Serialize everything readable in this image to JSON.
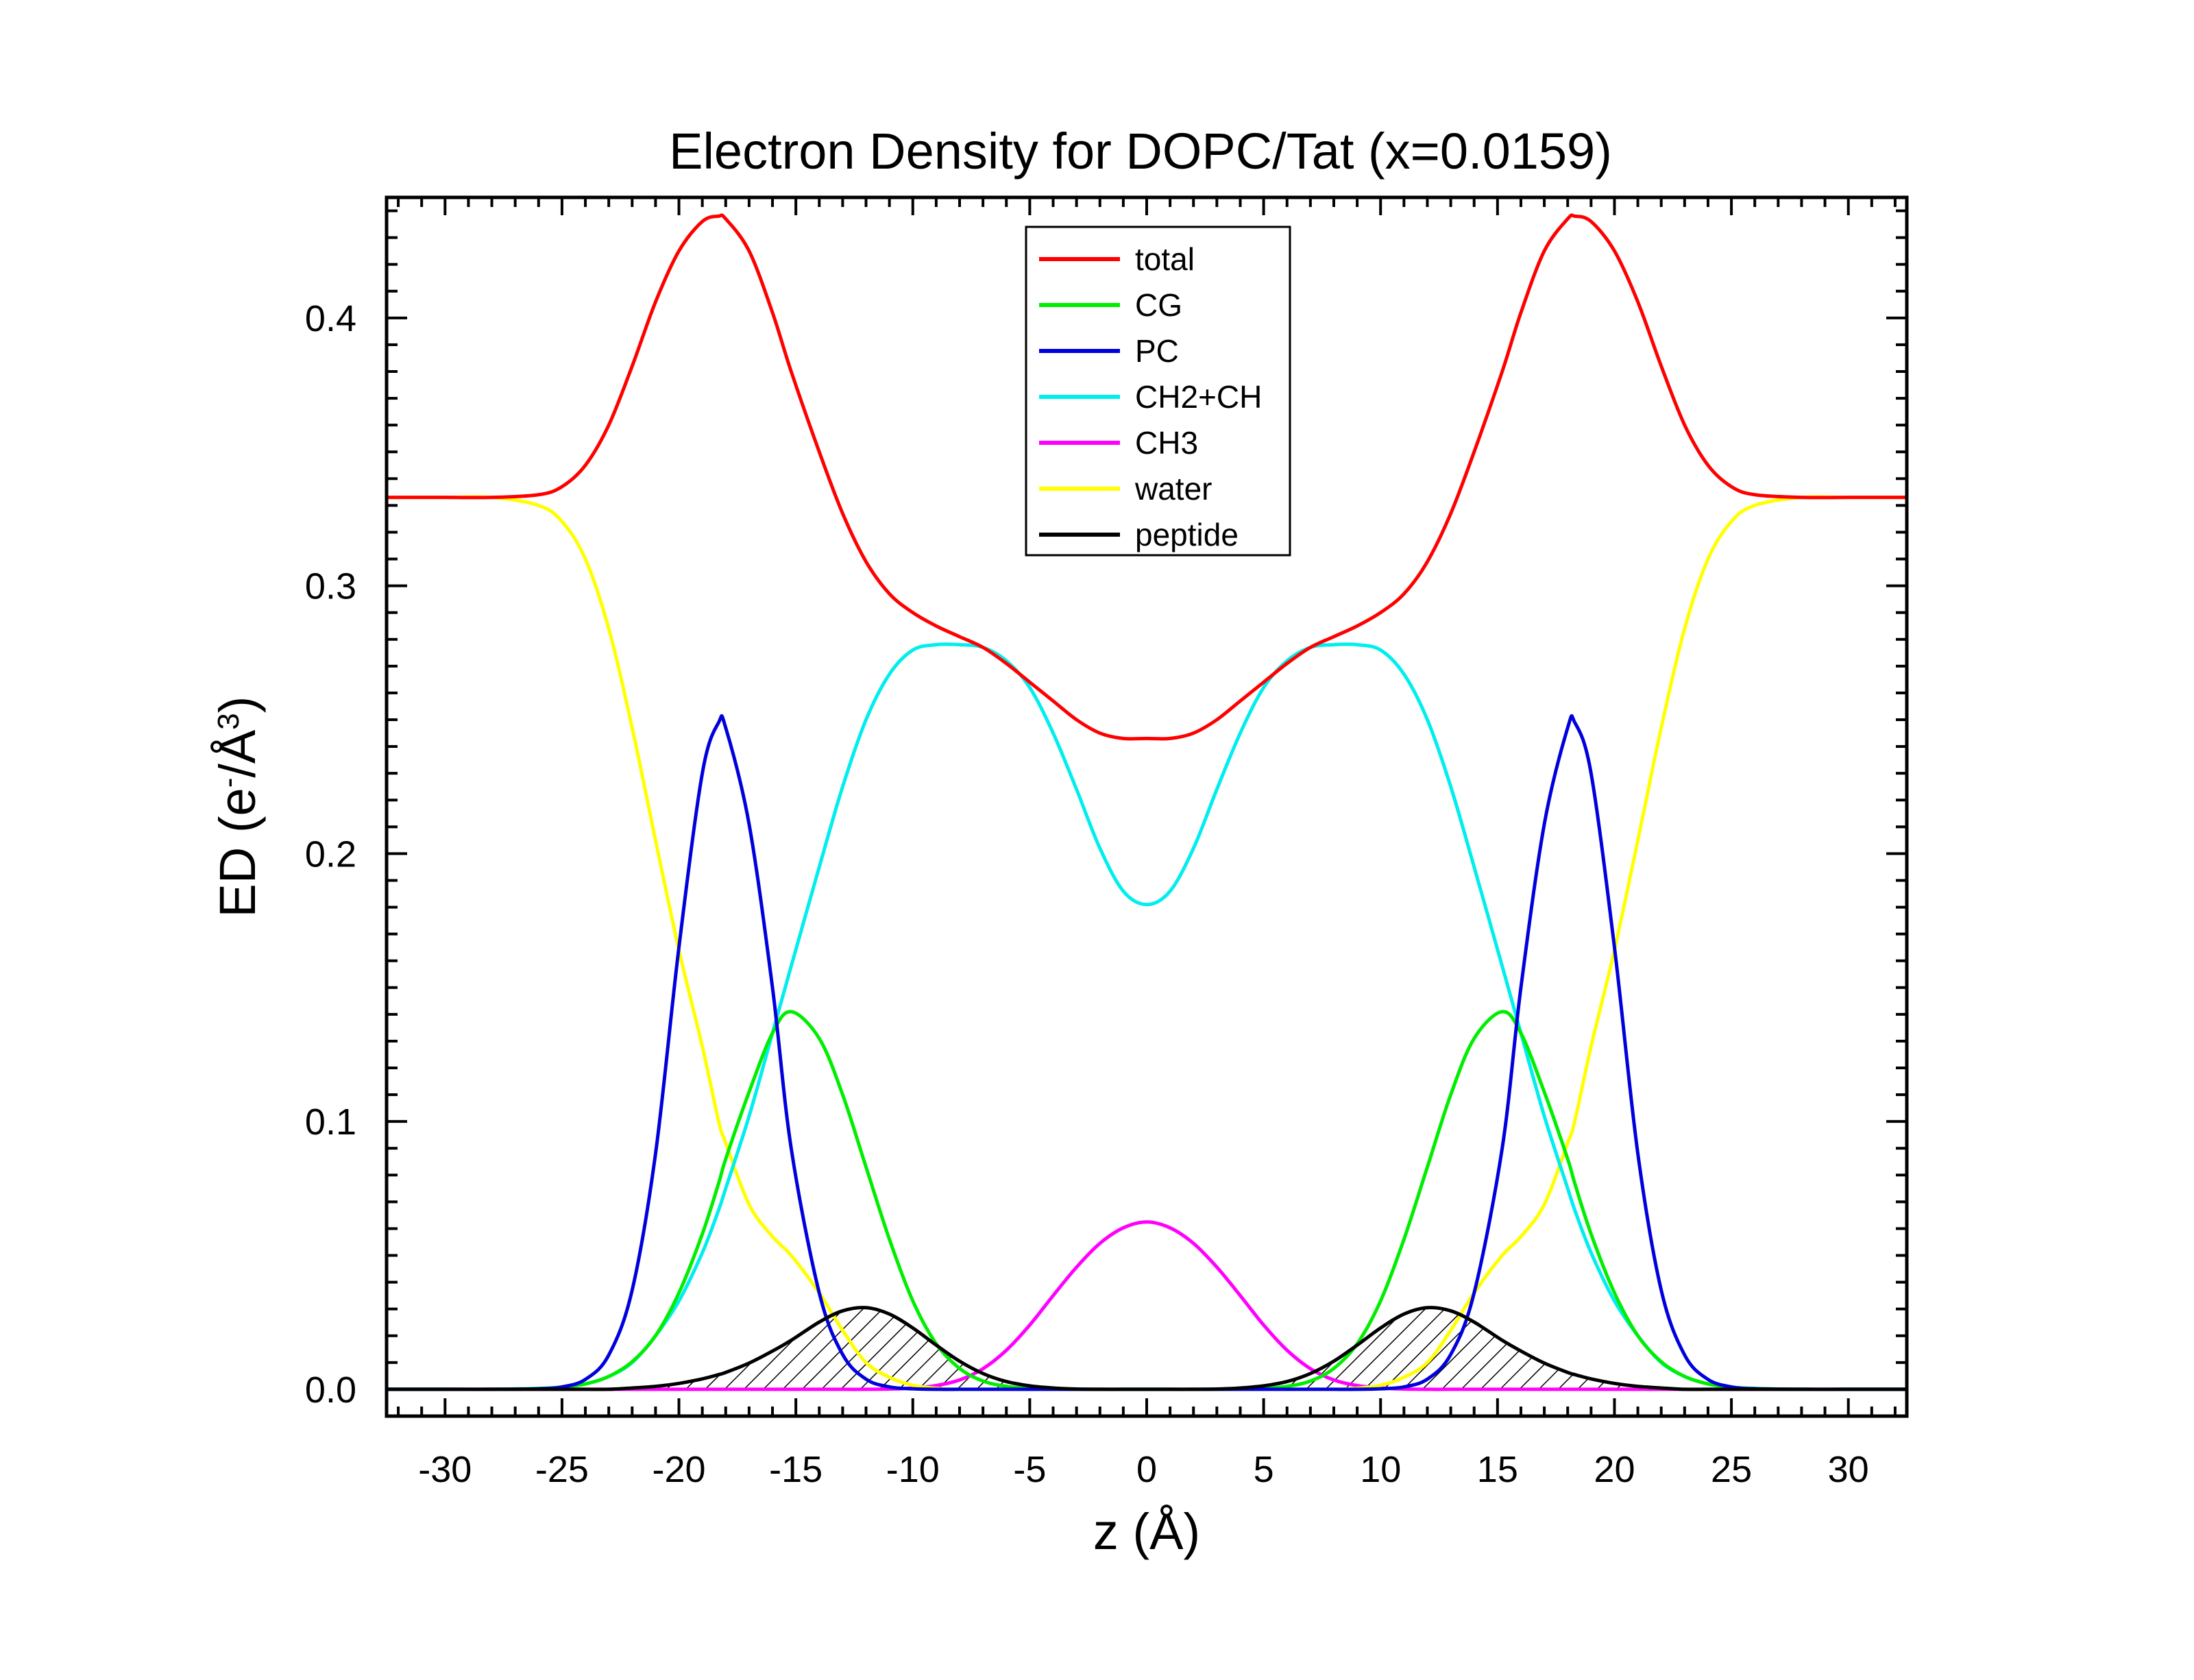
{
  "chart_data": {
    "type": "line",
    "title": "Electron Density for DOPC/Tat (x=0.0159)",
    "xlabel": "z (Å)",
    "ylabel": {
      "main": "ED (e",
      "sup1": "-",
      "mid": "/Å",
      "sup2": "3",
      "end": ")"
    },
    "xlim": [
      -32.5,
      32.5
    ],
    "ylim": [
      -0.01,
      0.445
    ],
    "x_major_ticks": [
      -30,
      -25,
      -20,
      -15,
      -10,
      -5,
      0,
      5,
      10,
      15,
      20,
      25,
      30
    ],
    "x_tick_labels": [
      "-30",
      "-25",
      "-20",
      "-15",
      "-10",
      "-5",
      "0",
      "5",
      "10",
      "15",
      "20",
      "25",
      "30"
    ],
    "y_major_ticks": [
      0.0,
      0.1,
      0.2,
      0.3,
      0.4
    ],
    "y_tick_labels": [
      "0.0",
      "0.1",
      "0.2",
      "0.3",
      "0.4"
    ],
    "grid": false,
    "legend_position": "top-center",
    "x": [
      -32.5,
      -30,
      -28,
      -26,
      -25,
      -24,
      -23,
      -22,
      -21,
      -20,
      -19,
      -18.3,
      -18,
      -17,
      -16,
      -15.2,
      -14,
      -13,
      -12,
      -11,
      -10,
      -9,
      -8,
      -7,
      -6,
      -5,
      -4,
      -3,
      -2,
      -1,
      0,
      1,
      2,
      3,
      4,
      5,
      6,
      7,
      8,
      9,
      10,
      11,
      12,
      13,
      14,
      15.2,
      16,
      17,
      18,
      18.3,
      19,
      20,
      21,
      22,
      23,
      24,
      25,
      26,
      28,
      30,
      32.5
    ],
    "series": [
      {
        "name": "total",
        "color": "#ff0000",
        "values": [
          0.333,
          0.333,
          0.333,
          0.334,
          0.337,
          0.345,
          0.36,
          0.382,
          0.406,
          0.425,
          0.436,
          0.438,
          0.437,
          0.425,
          0.402,
          0.38,
          0.35,
          0.327,
          0.309,
          0.297,
          0.29,
          0.285,
          0.281,
          0.277,
          0.271,
          0.264,
          0.257,
          0.25,
          0.245,
          0.243,
          0.243,
          0.243,
          0.245,
          0.25,
          0.257,
          0.264,
          0.271,
          0.277,
          0.281,
          0.285,
          0.29,
          0.297,
          0.309,
          0.327,
          0.35,
          0.38,
          0.402,
          0.425,
          0.437,
          0.438,
          0.436,
          0.425,
          0.406,
          0.382,
          0.36,
          0.345,
          0.337,
          0.334,
          0.333,
          0.333,
          0.333
        ]
      },
      {
        "name": "CG",
        "color": "#00ee00",
        "values": [
          0,
          0,
          0,
          0.0003,
          0.0008,
          0.002,
          0.0048,
          0.0103,
          0.02,
          0.036,
          0.058,
          0.077,
          0.086,
          0.111,
          0.133,
          0.141,
          0.131,
          0.11,
          0.083,
          0.056,
          0.033,
          0.017,
          0.0078,
          0.0031,
          0.0011,
          0.0003,
          0.0001,
          0,
          0,
          0,
          0,
          0,
          0,
          0,
          0.0001,
          0.0003,
          0.0011,
          0.0031,
          0.0078,
          0.017,
          0.033,
          0.056,
          0.083,
          0.11,
          0.131,
          0.141,
          0.133,
          0.111,
          0.086,
          0.077,
          0.058,
          0.036,
          0.02,
          0.0103,
          0.0048,
          0.002,
          0.0008,
          0.0003,
          0,
          0,
          0
        ]
      },
      {
        "name": "PC",
        "color": "#0000dd",
        "values": [
          0,
          0,
          0,
          0.0002,
          0.0009,
          0.0037,
          0.0128,
          0.037,
          0.088,
          0.165,
          0.23,
          0.249,
          0.247,
          0.211,
          0.15,
          0.09,
          0.036,
          0.013,
          0.0038,
          0.0009,
          0.0002,
          0,
          0,
          0,
          0,
          0,
          0,
          0,
          0,
          0,
          0,
          0,
          0,
          0,
          0,
          0,
          0,
          0,
          0,
          0,
          0.0002,
          0.0009,
          0.0038,
          0.013,
          0.036,
          0.09,
          0.15,
          0.211,
          0.247,
          0.249,
          0.23,
          0.165,
          0.088,
          0.037,
          0.0128,
          0.0037,
          0.0009,
          0.0002,
          0,
          0,
          0
        ]
      },
      {
        "name": "CH2+CH",
        "color": "#00eeee",
        "values": [
          0,
          0,
          0,
          0.0003,
          0.0008,
          0.002,
          0.0048,
          0.01,
          0.02,
          0.033,
          0.051,
          0.067,
          0.075,
          0.102,
          0.133,
          0.158,
          0.195,
          0.225,
          0.25,
          0.267,
          0.276,
          0.278,
          0.278,
          0.277,
          0.272,
          0.262,
          0.245,
          0.224,
          0.202,
          0.186,
          0.181,
          0.186,
          0.202,
          0.224,
          0.245,
          0.262,
          0.272,
          0.277,
          0.278,
          0.278,
          0.276,
          0.267,
          0.25,
          0.225,
          0.195,
          0.158,
          0.133,
          0.102,
          0.075,
          0.067,
          0.051,
          0.033,
          0.02,
          0.01,
          0.0048,
          0.002,
          0.0008,
          0.0003,
          0,
          0,
          0
        ]
      },
      {
        "name": "CH3",
        "color": "#ff00ff",
        "values": [
          0,
          0,
          0,
          0,
          0,
          0,
          0,
          0,
          0,
          0,
          0,
          0,
          0,
          0,
          0,
          0,
          0,
          0,
          0,
          0.0001,
          0.0005,
          0.0014,
          0.0035,
          0.0077,
          0.0146,
          0.024,
          0.035,
          0.0456,
          0.0545,
          0.0603,
          0.0625,
          0.0603,
          0.0545,
          0.0456,
          0.035,
          0.024,
          0.0146,
          0.0077,
          0.0035,
          0.0014,
          0.0005,
          0.0001,
          0,
          0,
          0,
          0,
          0,
          0,
          0,
          0,
          0,
          0,
          0,
          0,
          0,
          0,
          0,
          0,
          0,
          0,
          0
        ]
      },
      {
        "name": "water",
        "color": "#ffff00",
        "values": [
          0.333,
          0.333,
          0.333,
          0.33,
          0.324,
          0.31,
          0.284,
          0.247,
          0.205,
          0.164,
          0.128,
          0.1,
          0.092,
          0.069,
          0.057,
          0.05,
          0.036,
          0.022,
          0.01,
          0.0045,
          0.0015,
          0.0004,
          0,
          0,
          0,
          0,
          0,
          0,
          0,
          0,
          0,
          0,
          0,
          0,
          0,
          0,
          0,
          0,
          0,
          0.0004,
          0.0015,
          0.0045,
          0.01,
          0.022,
          0.036,
          0.05,
          0.057,
          0.069,
          0.092,
          0.1,
          0.128,
          0.164,
          0.205,
          0.247,
          0.284,
          0.31,
          0.324,
          0.33,
          0.333,
          0.333,
          0.333
        ]
      },
      {
        "name": "peptide",
        "color": "#000000",
        "values": [
          0,
          0,
          0,
          0,
          0,
          0,
          0,
          0.0005,
          0.0011,
          0.0022,
          0.0039,
          0.0055,
          0.0063,
          0.0098,
          0.0143,
          0.0183,
          0.0251,
          0.0293,
          0.0305,
          0.0281,
          0.0229,
          0.0165,
          0.0105,
          0.0059,
          0.0029,
          0.0013,
          0.0005,
          0.0001,
          0,
          0,
          0,
          0,
          0,
          0.0001,
          0.0005,
          0.0013,
          0.0029,
          0.0059,
          0.0105,
          0.0165,
          0.0229,
          0.0281,
          0.0305,
          0.0293,
          0.0251,
          0.0183,
          0.0143,
          0.0098,
          0.0063,
          0.0055,
          0.0039,
          0.0022,
          0.0011,
          0.0005,
          0,
          0,
          0,
          0,
          0,
          0,
          0
        ],
        "fill": "hatched"
      }
    ]
  }
}
